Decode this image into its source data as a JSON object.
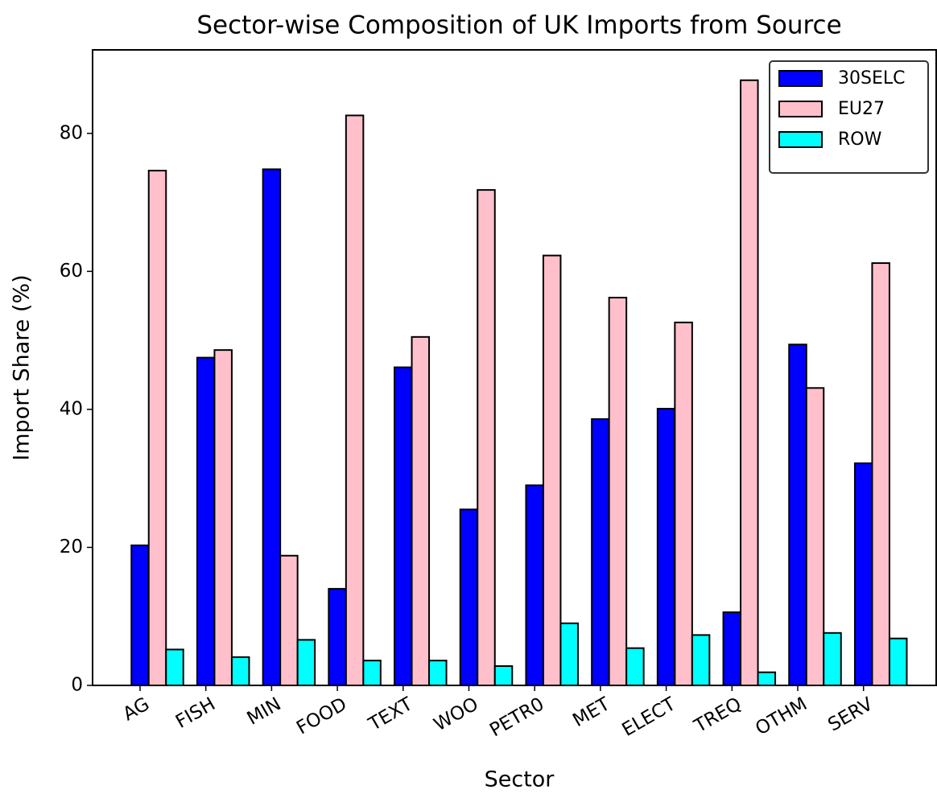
{
  "chart_data": {
    "type": "bar",
    "title": "Sector-wise Composition of UK Imports from Source",
    "x_label": "Sector",
    "y_label": "Import Share (%)",
    "categories": [
      "AG",
      "FISH",
      "MIN",
      "FOOD",
      "TEXT",
      "WOO",
      "PETR0",
      "MET",
      "ELECT",
      "TREQ",
      "OTHM",
      "SERV"
    ],
    "series": [
      {
        "name": "30SELC",
        "color": "#0000ff",
        "values": [
          20.3,
          47.5,
          74.8,
          14.0,
          46.1,
          25.5,
          29.0,
          38.6,
          40.1,
          10.6,
          49.4,
          32.2
        ]
      },
      {
        "name": "EU27",
        "color": "#ffc0cb",
        "values": [
          74.6,
          48.6,
          18.8,
          82.6,
          50.5,
          71.8,
          62.3,
          56.2,
          52.6,
          87.7,
          43.1,
          61.2
        ]
      },
      {
        "name": "ROW",
        "color": "#00ffff",
        "values": [
          5.2,
          4.1,
          6.6,
          3.6,
          3.6,
          2.8,
          9.0,
          5.4,
          7.3,
          1.9,
          7.6,
          6.8
        ]
      }
    ],
    "ylim": [
      0,
      92.1
    ],
    "yticks": [
      0,
      20,
      40,
      60,
      80
    ],
    "grid": false,
    "legend": "upper right"
  }
}
